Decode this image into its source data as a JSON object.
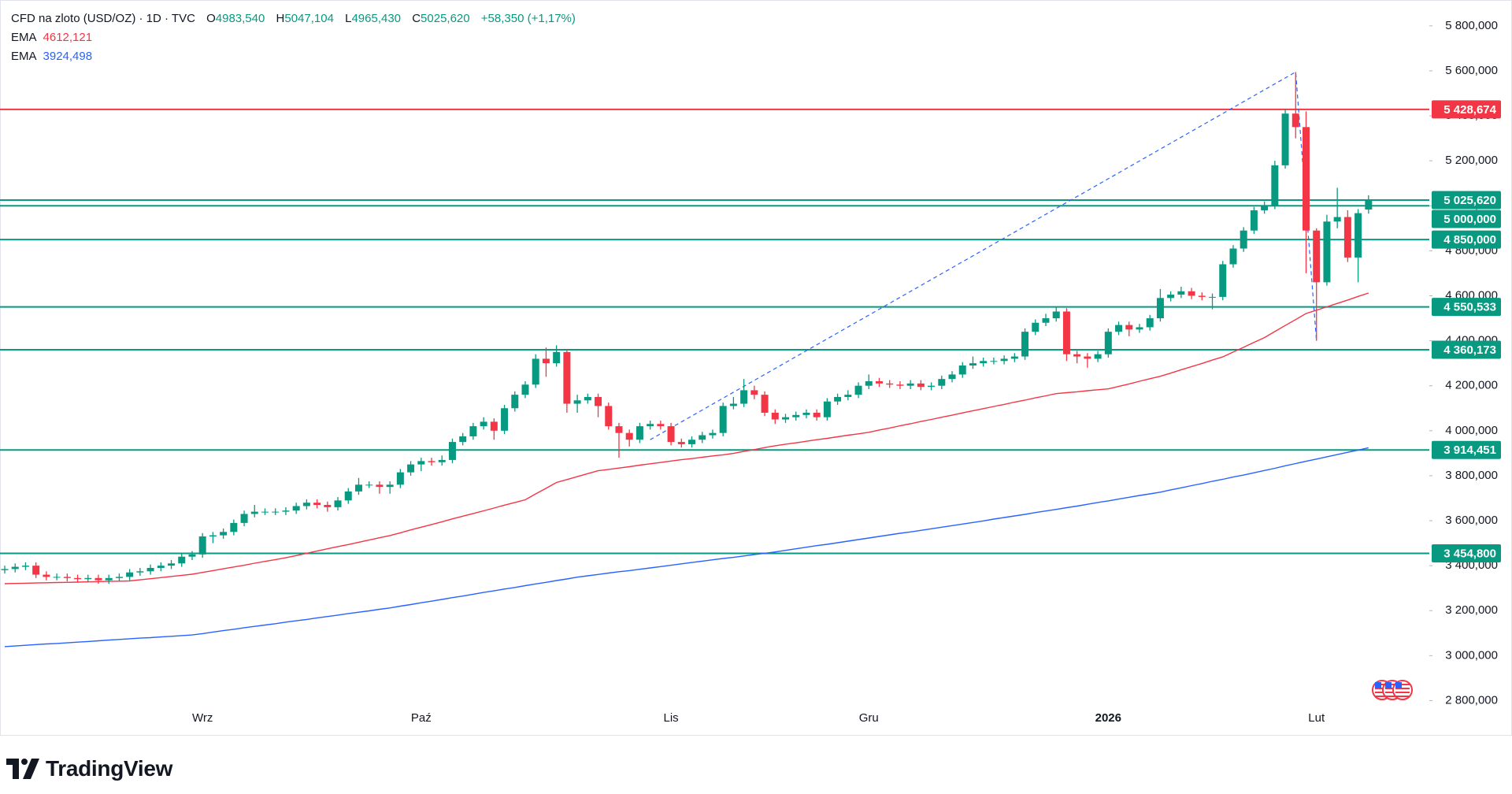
{
  "chart_data": {
    "type": "candlestick",
    "title": "CFD na zloto (USD/OZ) · 1D · TVC",
    "ohlc_header": {
      "open": {
        "key": "O",
        "value": 4983.54,
        "label": "4983,540"
      },
      "high": {
        "key": "H",
        "value": 5047.104,
        "label": "5047,104"
      },
      "low": {
        "key": "L",
        "value": 4965.43,
        "label": "4965,430"
      },
      "close": {
        "key": "C",
        "value": 5025.62,
        "label": "5025,620"
      },
      "change": {
        "value": 58.35,
        "label": "+58,350"
      },
      "change_pct": {
        "value": 1.17,
        "label": "(+1,17%)"
      }
    },
    "categories": [
      null,
      null,
      null,
      null,
      null,
      null,
      null,
      null,
      null,
      null,
      null,
      null,
      null,
      null,
      null,
      null,
      null,
      null,
      null,
      "Wrz",
      null,
      null,
      null,
      null,
      null,
      null,
      null,
      null,
      null,
      null,
      null,
      null,
      null,
      null,
      null,
      null,
      null,
      null,
      null,
      null,
      "Paź",
      null,
      null,
      null,
      null,
      null,
      null,
      null,
      null,
      null,
      null,
      null,
      null,
      null,
      null,
      null,
      null,
      null,
      null,
      null,
      null,
      null,
      null,
      null,
      "Lis",
      null,
      null,
      null,
      null,
      null,
      null,
      null,
      null,
      null,
      null,
      null,
      null,
      null,
      null,
      null,
      null,
      null,
      null,
      "Gru",
      null,
      null,
      null,
      null,
      null,
      null,
      null,
      null,
      null,
      null,
      null,
      null,
      null,
      null,
      null,
      null,
      null,
      null,
      null,
      null,
      null,
      null,
      "2026",
      null,
      null,
      null,
      null,
      null,
      null,
      null,
      null,
      null,
      null,
      null,
      null,
      null,
      null,
      null,
      null,
      null,
      null,
      null,
      "Lut",
      null,
      null,
      null,
      null,
      null
    ],
    "open": [
      3380,
      3385,
      3395,
      3400,
      3360,
      3350,
      3350,
      3345,
      3340,
      3345,
      3335,
      3345,
      3350,
      3370,
      3375,
      3390,
      3400,
      3410,
      3440,
      3450,
      3530,
      3535,
      3550,
      3590,
      3630,
      3640,
      3640,
      3640,
      3645,
      3665,
      3680,
      3670,
      3660,
      3690,
      3730,
      3760,
      3760,
      3750,
      3760,
      3815,
      3850,
      3865,
      3860,
      3870,
      3950,
      3975,
      4020,
      4040,
      4000,
      4100,
      4160,
      4205,
      4320,
      4300,
      4350,
      4120,
      4135,
      4150,
      4110,
      4020,
      3990,
      3960,
      4020,
      4030,
      4020,
      3950,
      3940,
      3960,
      3980,
      3990,
      4110,
      4120,
      4180,
      4160,
      4080,
      4050,
      4060,
      4070,
      4080,
      4060,
      4130,
      4150,
      4160,
      4200,
      4220,
      4210,
      4205,
      4200,
      4210,
      4195,
      4200,
      4230,
      4250,
      4290,
      4300,
      4310,
      4310,
      4320,
      4330,
      4440,
      4480,
      4500,
      4530,
      4340,
      4330,
      4320,
      4340,
      4440,
      4470,
      4450,
      4460,
      4500,
      4590,
      4605,
      4620,
      4600,
      4595,
      4595,
      4740,
      4810,
      4890,
      4980,
      5000,
      5180,
      5410,
      5350,
      4890,
      4660,
      4930,
      4950,
      4770,
      4983.54
    ],
    "high": [
      3400,
      3410,
      3415,
      3415,
      3375,
      3365,
      3365,
      3360,
      3360,
      3360,
      3360,
      3365,
      3385,
      3390,
      3405,
      3415,
      3425,
      3455,
      3465,
      3545,
      3550,
      3565,
      3605,
      3645,
      3670,
      3655,
      3655,
      3660,
      3680,
      3695,
      3695,
      3685,
      3705,
      3745,
      3790,
      3775,
      3775,
      3775,
      3830,
      3865,
      3880,
      3880,
      3890,
      3965,
      3990,
      4035,
      4060,
      4055,
      4115,
      4175,
      4220,
      4340,
      4370,
      4380,
      4360,
      4160,
      4165,
      4165,
      4125,
      4035,
      4005,
      4035,
      4045,
      4045,
      4035,
      3965,
      3975,
      3995,
      4005,
      4125,
      4150,
      4230,
      4200,
      4175,
      4095,
      4075,
      4085,
      4095,
      4095,
      4145,
      4165,
      4180,
      4215,
      4250,
      4235,
      4225,
      4220,
      4225,
      4225,
      4215,
      4245,
      4265,
      4305,
      4330,
      4325,
      4325,
      4335,
      4345,
      4455,
      4495,
      4520,
      4550,
      4545,
      4355,
      4345,
      4355,
      4455,
      4485,
      4485,
      4475,
      4515,
      4630,
      4620,
      4640,
      4635,
      4615,
      4610,
      4755,
      4825,
      4905,
      4995,
      5020,
      5200,
      5430,
      5595,
      5420,
      4900,
      4960,
      5080,
      4980,
      4985,
      5047.104
    ],
    "low": [
      3365,
      3370,
      3380,
      3345,
      3335,
      3335,
      3330,
      3325,
      3325,
      3320,
      3320,
      3330,
      3335,
      3355,
      3360,
      3375,
      3385,
      3395,
      3425,
      3435,
      3500,
      3520,
      3535,
      3575,
      3615,
      3625,
      3625,
      3625,
      3630,
      3650,
      3655,
      3640,
      3645,
      3675,
      3715,
      3745,
      3720,
      3720,
      3745,
      3800,
      3820,
      3845,
      3845,
      3855,
      3935,
      3960,
      4005,
      3960,
      3985,
      4085,
      4145,
      4190,
      4240,
      4285,
      4080,
      4080,
      4120,
      4060,
      4005,
      3880,
      3930,
      3945,
      4005,
      4005,
      3935,
      3925,
      3925,
      3945,
      3965,
      3975,
      4095,
      4105,
      4140,
      4065,
      4030,
      4035,
      4045,
      4055,
      4045,
      4045,
      4115,
      4135,
      4145,
      4185,
      4195,
      4190,
      4185,
      4185,
      4180,
      4180,
      4185,
      4215,
      4235,
      4275,
      4285,
      4295,
      4295,
      4305,
      4315,
      4425,
      4465,
      4485,
      4310,
      4300,
      4280,
      4305,
      4325,
      4425,
      4420,
      4435,
      4445,
      4485,
      4575,
      4590,
      4585,
      4580,
      4540,
      4580,
      4725,
      4795,
      4875,
      4965,
      4985,
      5165,
      5300,
      4700,
      4400,
      4645,
      4900,
      4750,
      4660,
      4965.43
    ],
    "close": [
      3385,
      3395,
      3400,
      3360,
      3350,
      3350,
      3345,
      3340,
      3345,
      3335,
      3345,
      3350,
      3370,
      3375,
      3390,
      3400,
      3410,
      3440,
      3450,
      3530,
      3535,
      3550,
      3590,
      3630,
      3640,
      3640,
      3640,
      3645,
      3665,
      3680,
      3670,
      3660,
      3690,
      3730,
      3760,
      3760,
      3750,
      3760,
      3815,
      3850,
      3865,
      3860,
      3870,
      3950,
      3975,
      4020,
      4040,
      4000,
      4100,
      4160,
      4205,
      4320,
      4300,
      4350,
      4120,
      4135,
      4150,
      4110,
      4020,
      3990,
      3960,
      4020,
      4030,
      4020,
      3950,
      3940,
      3960,
      3980,
      3990,
      4110,
      4120,
      4180,
      4160,
      4080,
      4050,
      4060,
      4070,
      4080,
      4060,
      4130,
      4150,
      4160,
      4200,
      4220,
      4210,
      4205,
      4200,
      4210,
      4195,
      4200,
      4230,
      4250,
      4290,
      4300,
      4310,
      4310,
      4320,
      4330,
      4440,
      4480,
      4500,
      4530,
      4340,
      4330,
      4320,
      4340,
      4440,
      4470,
      4450,
      4460,
      4500,
      4590,
      4605,
      4620,
      4600,
      4595,
      4595,
      4740,
      4810,
      4890,
      4980,
      5000,
      5180,
      5410,
      5350,
      4890,
      4660,
      4930,
      4950,
      4770,
      4967.27,
      5025.62
    ],
    "up_color": "#089981",
    "down_color": "#f23645",
    "series": [
      {
        "name": "EMA",
        "color": "#f23645",
        "last": {
          "value": 4612.121,
          "label": "4612,121"
        },
        "values": [
          3320,
          3321,
          3322,
          3323,
          3324,
          3325,
          3326,
          3327,
          3328,
          3329,
          3330,
          3331,
          3332,
          3337,
          3342,
          3347,
          3352,
          3357,
          3362,
          3370,
          3378,
          3386,
          3394,
          3402,
          3411,
          3419,
          3427,
          3435,
          3445,
          3455,
          3465,
          3475,
          3485,
          3494,
          3504,
          3514,
          3524,
          3534,
          3546,
          3559,
          3571,
          3583,
          3595,
          3608,
          3620,
          3632,
          3644,
          3656,
          3669,
          3681,
          3693,
          3719,
          3744,
          3770,
          3783,
          3796,
          3809,
          3822,
          3828,
          3834,
          3840,
          3847,
          3853,
          3859,
          3865,
          3871,
          3876,
          3882,
          3888,
          3893,
          3899,
          3908,
          3916,
          3925,
          3933,
          3940,
          3946,
          3953,
          3960,
          3966,
          3973,
          3980,
          3986,
          3993,
          4003,
          4012,
          4022,
          4031,
          4041,
          4050,
          4060,
          4069,
          4079,
          4089,
          4098,
          4108,
          4117,
          4127,
          4136,
          4146,
          4155,
          4165,
          4169,
          4173,
          4178,
          4182,
          4186,
          4197,
          4208,
          4220,
          4231,
          4242,
          4256,
          4271,
          4285,
          4299,
          4314,
          4328,
          4350,
          4371,
          4393,
          4414,
          4441,
          4468,
          4494,
          4521,
          4536,
          4551,
          4566,
          4581,
          4597,
          4612.121
        ]
      },
      {
        "name": "EMA",
        "color": "#2962ff",
        "last": {
          "value": 3924.498,
          "label": "3924,498"
        },
        "values": [
          3040,
          3043,
          3046,
          3049,
          3052,
          3054,
          3057,
          3060,
          3063,
          3066,
          3069,
          3072,
          3075,
          3078,
          3080,
          3083,
          3086,
          3089,
          3092,
          3098,
          3105,
          3111,
          3117,
          3124,
          3130,
          3136,
          3142,
          3149,
          3155,
          3161,
          3168,
          3174,
          3180,
          3187,
          3193,
          3199,
          3206,
          3212,
          3220,
          3227,
          3235,
          3242,
          3250,
          3258,
          3265,
          3273,
          3281,
          3288,
          3296,
          3303,
          3311,
          3319,
          3326,
          3334,
          3341,
          3349,
          3355,
          3361,
          3367,
          3373,
          3378,
          3384,
          3390,
          3396,
          3402,
          3408,
          3414,
          3420,
          3426,
          3432,
          3437,
          3443,
          3449,
          3455,
          3461,
          3468,
          3475,
          3482,
          3489,
          3495,
          3502,
          3509,
          3516,
          3523,
          3530,
          3537,
          3544,
          3550,
          3557,
          3564,
          3571,
          3578,
          3585,
          3592,
          3599,
          3607,
          3614,
          3621,
          3628,
          3636,
          3643,
          3650,
          3658,
          3665,
          3673,
          3681,
          3688,
          3696,
          3704,
          3712,
          3719,
          3727,
          3737,
          3746,
          3756,
          3765,
          3775,
          3784,
          3794,
          3803,
          3813,
          3823,
          3833,
          3844,
          3854,
          3864,
          3874,
          3884,
          3894,
          3904,
          3914,
          3924.498
        ]
      }
    ],
    "levels": [
      {
        "value": 5428.674,
        "label": "5 428,674",
        "color": "#f23645"
      },
      {
        "value": 5025.62,
        "label": "5 025,620",
        "color": "#089981"
      },
      {
        "value": 5000,
        "label": "5 000,000",
        "color": "#089981"
      },
      {
        "value": 4850,
        "label": "4 850,000",
        "color": "#089981"
      },
      {
        "value": 4550.533,
        "label": "4 550,533",
        "color": "#089981"
      },
      {
        "value": 4360.173,
        "label": "4 360,173",
        "color": "#089981"
      },
      {
        "value": 3914.451,
        "label": "3 914,451",
        "color": "#089981"
      },
      {
        "value": 3454.8,
        "label": "3 454,800",
        "color": "#089981"
      }
    ],
    "trend_line": {
      "x": [
        62,
        124,
        126
      ],
      "values": [
        3960,
        5595,
        4400
      ],
      "color": "#2962ff"
    },
    "ylim": [
      2700,
      5915
    ],
    "yticks": [
      {
        "value": 2800,
        "label": "2 800,000"
      },
      {
        "value": 3000,
        "label": "3 000,000"
      },
      {
        "value": 3200,
        "label": "3 200,000"
      },
      {
        "value": 3400,
        "label": "3 400,000"
      },
      {
        "value": 3600,
        "label": "3 600,000"
      },
      {
        "value": 3800,
        "label": "3 800,000"
      },
      {
        "value": 4000,
        "label": "4 000,000"
      },
      {
        "value": 4200,
        "label": "4 200,000"
      },
      {
        "value": 4400,
        "label": "4 400,000"
      },
      {
        "value": 4600,
        "label": "4 600,000"
      },
      {
        "value": 4800,
        "label": "4 800,000"
      },
      {
        "value": 5000,
        "label": "5 000,000"
      },
      {
        "value": 5200,
        "label": "5 200,000"
      },
      {
        "value": 5400,
        "label": "5 400,000"
      },
      {
        "value": 5600,
        "label": "5 600,000"
      },
      {
        "value": 5800,
        "label": "5 800,000"
      }
    ],
    "grid": false
  },
  "brand": "TradingView"
}
